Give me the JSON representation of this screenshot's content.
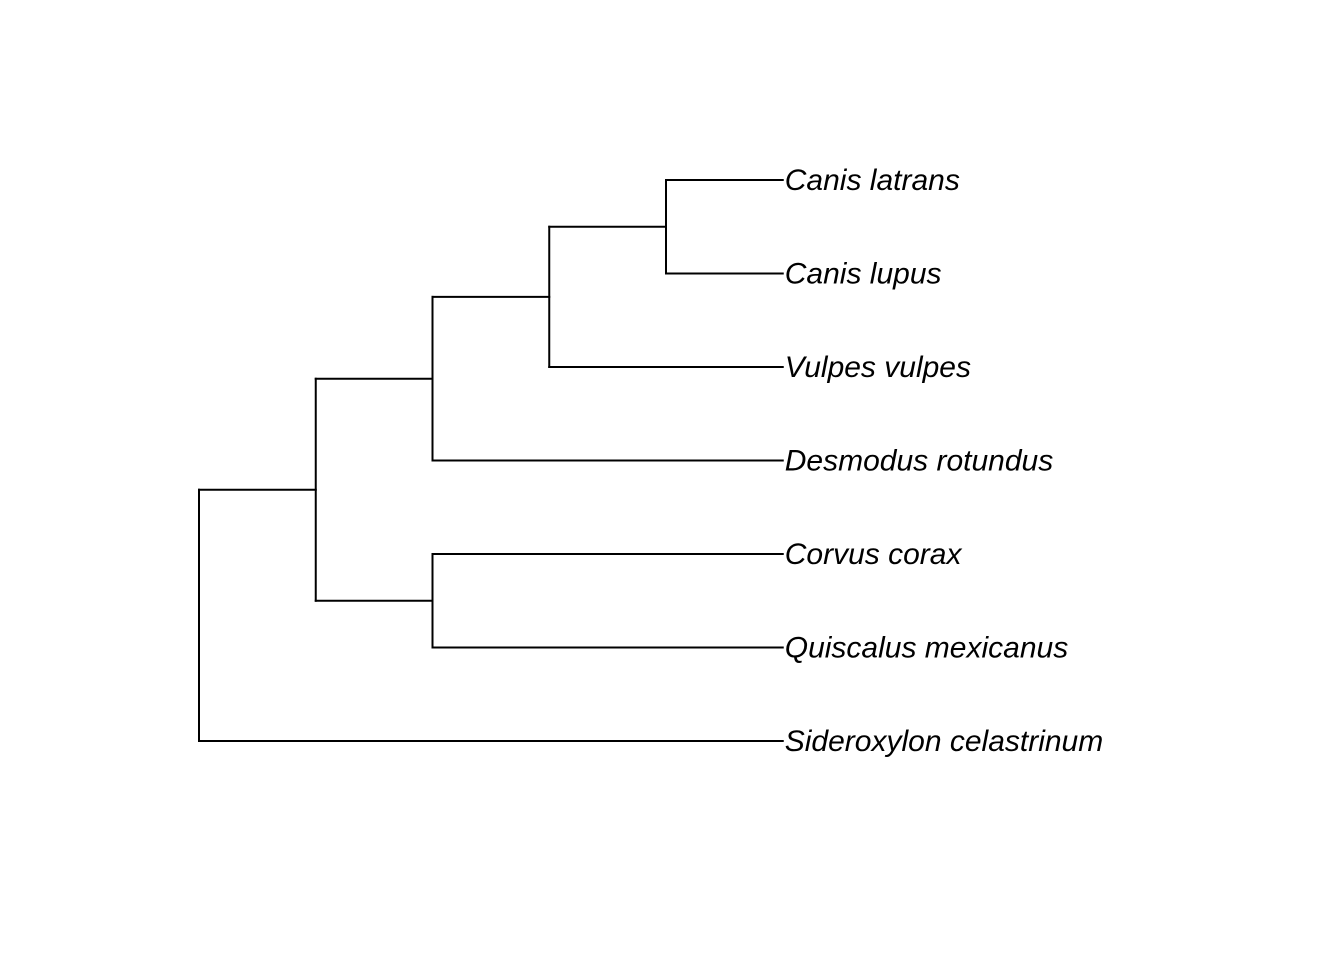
{
  "tree": {
    "name": "root",
    "children": [
      {
        "name": "n1",
        "children": [
          {
            "name": "n2",
            "children": [
              {
                "name": "n3",
                "children": [
                  {
                    "name": "n4",
                    "children": [
                      {
                        "label": "Canis latrans"
                      },
                      {
                        "label": "Canis lupus"
                      }
                    ]
                  },
                  {
                    "label": "Vulpes vulpes"
                  }
                ]
              },
              {
                "label": "Desmodus rotundus"
              }
            ]
          },
          {
            "name": "n5",
            "children": [
              {
                "label": "Corvus corax"
              },
              {
                "label": "Quiscalus mexicanus"
              }
            ]
          }
        ]
      },
      {
        "label": "Sideroxylon celastrinum"
      }
    ]
  },
  "colors": {
    "branch": "#000000",
    "label": "#000000",
    "background": "#ffffff"
  }
}
